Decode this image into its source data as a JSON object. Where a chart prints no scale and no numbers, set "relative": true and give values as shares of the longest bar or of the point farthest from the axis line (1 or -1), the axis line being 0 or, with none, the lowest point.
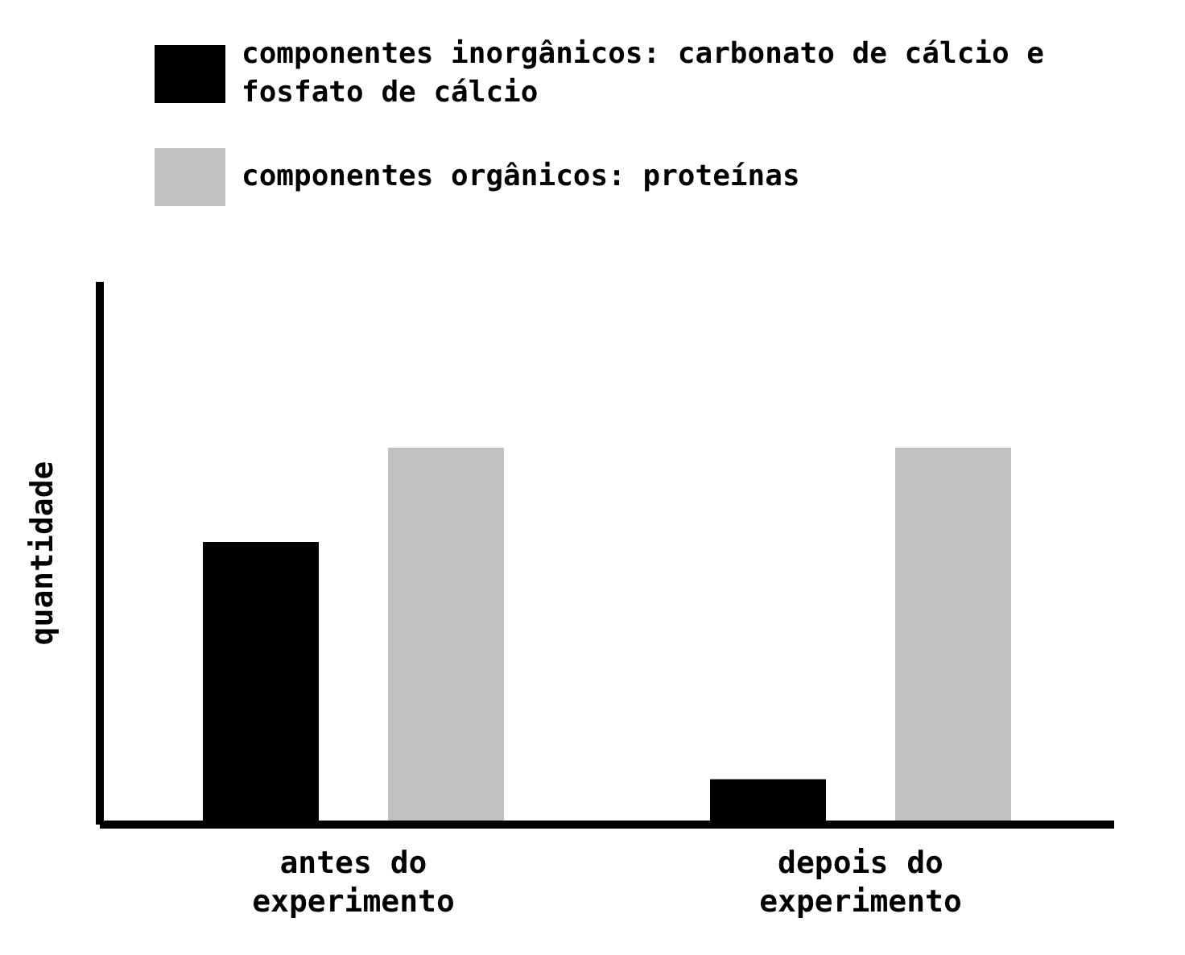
{
  "chart_data": {
    "type": "bar",
    "relative": true,
    "ylabel": "quantidade",
    "categories": [
      "antes do experimento",
      "depois do experimento"
    ],
    "legend": "top left",
    "series": [
      {
        "name": "componentes inorgânicos: carbonato de cálcio e fosfato de cálcio",
        "color": "#000000",
        "values": [
          0.75,
          0.12
        ]
      },
      {
        "name": "componentes orgânicos: proteínas",
        "color": "#c0c0c0",
        "values": [
          1,
          1
        ]
      }
    ]
  }
}
